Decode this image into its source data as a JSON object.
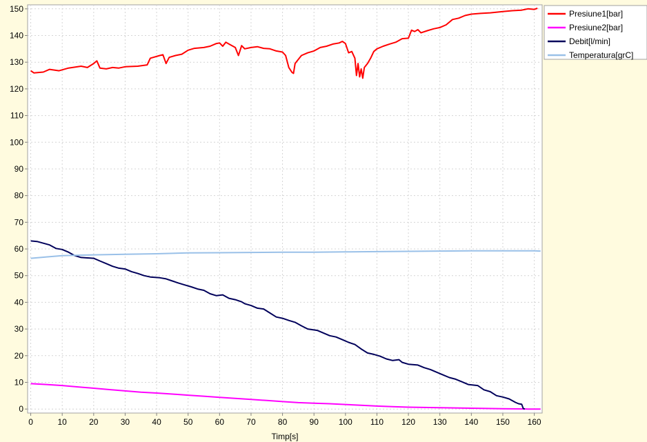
{
  "chart_data": {
    "type": "line",
    "xlabel": "Timp[s]",
    "ylabel": "",
    "xlim": [
      -1,
      162.5
    ],
    "ylim": [
      -1.5,
      151.5
    ],
    "xticks": [
      0,
      10,
      20,
      30,
      40,
      50,
      60,
      70,
      80,
      90,
      100,
      110,
      120,
      130,
      140,
      150,
      160
    ],
    "yticks": [
      0,
      10,
      20,
      30,
      40,
      50,
      60,
      70,
      80,
      90,
      100,
      110,
      120,
      130,
      140,
      150
    ],
    "grid": true,
    "legend_position": "top-right-outside",
    "series": [
      {
        "name": "Presiune1[bar]",
        "color": "#ff0000",
        "points": [
          [
            0,
            126.8
          ],
          [
            1,
            126
          ],
          [
            4,
            126.3
          ],
          [
            6,
            127.3
          ],
          [
            9,
            126.8
          ],
          [
            12,
            127.8
          ],
          [
            16,
            128.5
          ],
          [
            18,
            128
          ],
          [
            20,
            129.5
          ],
          [
            21,
            130.5
          ],
          [
            22,
            127.8
          ],
          [
            24,
            127.5
          ],
          [
            26,
            128
          ],
          [
            28,
            127.8
          ],
          [
            30,
            128.3
          ],
          [
            34,
            128.5
          ],
          [
            37,
            129
          ],
          [
            38,
            131.5
          ],
          [
            41,
            132.5
          ],
          [
            42,
            132.8
          ],
          [
            43,
            129.5
          ],
          [
            44,
            131.8
          ],
          [
            46,
            132.5
          ],
          [
            48,
            133
          ],
          [
            50,
            134.5
          ],
          [
            52,
            135.2
          ],
          [
            55,
            135.5
          ],
          [
            57,
            136
          ],
          [
            59,
            137
          ],
          [
            60,
            137.2
          ],
          [
            61,
            136
          ],
          [
            62,
            137.5
          ],
          [
            63,
            136.8
          ],
          [
            65,
            135.5
          ],
          [
            66,
            132.5
          ],
          [
            67,
            136.2
          ],
          [
            68,
            135
          ],
          [
            70,
            135.5
          ],
          [
            72,
            135.8
          ],
          [
            74,
            135.2
          ],
          [
            76,
            135
          ],
          [
            78,
            134.2
          ],
          [
            80,
            133.8
          ],
          [
            81,
            132.5
          ],
          [
            82,
            128
          ],
          [
            83,
            126.2
          ],
          [
            83.5,
            125.8
          ],
          [
            84,
            129.5
          ],
          [
            85,
            131
          ],
          [
            86,
            132.5
          ],
          [
            88,
            133.5
          ],
          [
            90,
            134.2
          ],
          [
            92,
            135.5
          ],
          [
            94,
            136
          ],
          [
            96,
            136.8
          ],
          [
            98,
            137.2
          ],
          [
            99,
            137.8
          ],
          [
            100,
            137
          ],
          [
            101,
            133.5
          ],
          [
            102,
            134
          ],
          [
            103,
            131.5
          ],
          [
            103.5,
            125
          ],
          [
            104,
            129.5
          ],
          [
            104.5,
            124.5
          ],
          [
            105,
            127.5
          ],
          [
            105.5,
            124
          ],
          [
            106,
            128
          ],
          [
            107,
            129.5
          ],
          [
            108,
            131.5
          ],
          [
            109,
            134
          ],
          [
            110,
            135
          ],
          [
            112,
            136
          ],
          [
            114,
            136.8
          ],
          [
            116,
            137.5
          ],
          [
            118,
            138.8
          ],
          [
            120,
            139
          ],
          [
            121,
            142
          ],
          [
            122,
            141.5
          ],
          [
            123,
            142.2
          ],
          [
            124,
            141
          ],
          [
            126,
            141.8
          ],
          [
            128,
            142.5
          ],
          [
            130,
            143
          ],
          [
            132,
            144
          ],
          [
            134,
            146
          ],
          [
            136,
            146.5
          ],
          [
            138,
            147.5
          ],
          [
            140,
            148
          ],
          [
            143,
            148.3
          ],
          [
            146,
            148.5
          ],
          [
            150,
            149
          ],
          [
            153,
            149.3
          ],
          [
            156,
            149.5
          ],
          [
            158,
            150
          ],
          [
            160,
            149.8
          ],
          [
            161,
            150.2
          ]
        ]
      },
      {
        "name": "Presiune2[bar]",
        "color": "#ff00ff",
        "points": [
          [
            0,
            9.5
          ],
          [
            5,
            9.2
          ],
          [
            10,
            8.8
          ],
          [
            15,
            8.3
          ],
          [
            20,
            7.8
          ],
          [
            25,
            7.3
          ],
          [
            30,
            6.8
          ],
          [
            35,
            6.3
          ],
          [
            40,
            6
          ],
          [
            45,
            5.6
          ],
          [
            50,
            5.2
          ],
          [
            55,
            4.8
          ],
          [
            60,
            4.4
          ],
          [
            65,
            4
          ],
          [
            70,
            3.6
          ],
          [
            75,
            3.2
          ],
          [
            80,
            2.8
          ],
          [
            85,
            2.4
          ],
          [
            90,
            2.2
          ],
          [
            95,
            2
          ],
          [
            100,
            1.7
          ],
          [
            105,
            1.4
          ],
          [
            110,
            1.1
          ],
          [
            115,
            0.9
          ],
          [
            120,
            0.7
          ],
          [
            125,
            0.6
          ],
          [
            130,
            0.5
          ],
          [
            135,
            0.4
          ],
          [
            140,
            0.3
          ],
          [
            145,
            0.2
          ],
          [
            150,
            0.1
          ],
          [
            155,
            0.05
          ],
          [
            158,
            0
          ],
          [
            162,
            0
          ]
        ]
      },
      {
        "name": "Debit[l/min]",
        "color": "#00005a",
        "points": [
          [
            0,
            63
          ],
          [
            2,
            62.8
          ],
          [
            6,
            61.5
          ],
          [
            8,
            60.2
          ],
          [
            10,
            59.8
          ],
          [
            12,
            58.8
          ],
          [
            14,
            57.5
          ],
          [
            16,
            56.8
          ],
          [
            20,
            56.5
          ],
          [
            22,
            55.5
          ],
          [
            24,
            54.5
          ],
          [
            26,
            53.5
          ],
          [
            28,
            52.8
          ],
          [
            30,
            52.5
          ],
          [
            32,
            51.5
          ],
          [
            34,
            50.8
          ],
          [
            36,
            50
          ],
          [
            38,
            49.5
          ],
          [
            41,
            49.2
          ],
          [
            43,
            48.8
          ],
          [
            45,
            48
          ],
          [
            47,
            47.2
          ],
          [
            49,
            46.5
          ],
          [
            51,
            45.8
          ],
          [
            53,
            45
          ],
          [
            55,
            44.5
          ],
          [
            57,
            43.2
          ],
          [
            59,
            42.5
          ],
          [
            61,
            42.8
          ],
          [
            63,
            41.5
          ],
          [
            65,
            41
          ],
          [
            67,
            40.2
          ],
          [
            68,
            39.5
          ],
          [
            70,
            38.8
          ],
          [
            72,
            37.8
          ],
          [
            74,
            37.5
          ],
          [
            76,
            36
          ],
          [
            78,
            34.5
          ],
          [
            80,
            34
          ],
          [
            82,
            33.2
          ],
          [
            84,
            32.5
          ],
          [
            86,
            31.2
          ],
          [
            88,
            30
          ],
          [
            91,
            29.5
          ],
          [
            93,
            28.5
          ],
          [
            95,
            27.5
          ],
          [
            97,
            27
          ],
          [
            99,
            26
          ],
          [
            101,
            25
          ],
          [
            103,
            24.2
          ],
          [
            105,
            22.5
          ],
          [
            107,
            21
          ],
          [
            109,
            20.5
          ],
          [
            111,
            19.8
          ],
          [
            113,
            18.8
          ],
          [
            115,
            18.2
          ],
          [
            117,
            18.5
          ],
          [
            118,
            17.5
          ],
          [
            120,
            16.8
          ],
          [
            123,
            16.5
          ],
          [
            125,
            15.5
          ],
          [
            127,
            14.8
          ],
          [
            129,
            13.8
          ],
          [
            131,
            12.8
          ],
          [
            133,
            11.8
          ],
          [
            135,
            11.2
          ],
          [
            137,
            10.2
          ],
          [
            139,
            9.2
          ],
          [
            142,
            8.8
          ],
          [
            144,
            7.2
          ],
          [
            146,
            6.5
          ],
          [
            148,
            5
          ],
          [
            150,
            4.5
          ],
          [
            152,
            3.8
          ],
          [
            154,
            2.5
          ],
          [
            155,
            2
          ],
          [
            156,
            1.8
          ],
          [
            156.5,
            0.2
          ],
          [
            157,
            0
          ]
        ]
      },
      {
        "name": "Temperatura[grC]",
        "color": "#99c0e8",
        "points": [
          [
            0,
            56.5
          ],
          [
            5,
            57
          ],
          [
            10,
            57.5
          ],
          [
            20,
            57.8
          ],
          [
            30,
            58
          ],
          [
            40,
            58.2
          ],
          [
            50,
            58.5
          ],
          [
            60,
            58.6
          ],
          [
            70,
            58.7
          ],
          [
            80,
            58.8
          ],
          [
            90,
            58.8
          ],
          [
            100,
            58.9
          ],
          [
            110,
            59
          ],
          [
            120,
            59.1
          ],
          [
            130,
            59.2
          ],
          [
            140,
            59.3
          ],
          [
            150,
            59.3
          ],
          [
            160,
            59.3
          ],
          [
            162,
            59.2
          ]
        ]
      }
    ]
  }
}
